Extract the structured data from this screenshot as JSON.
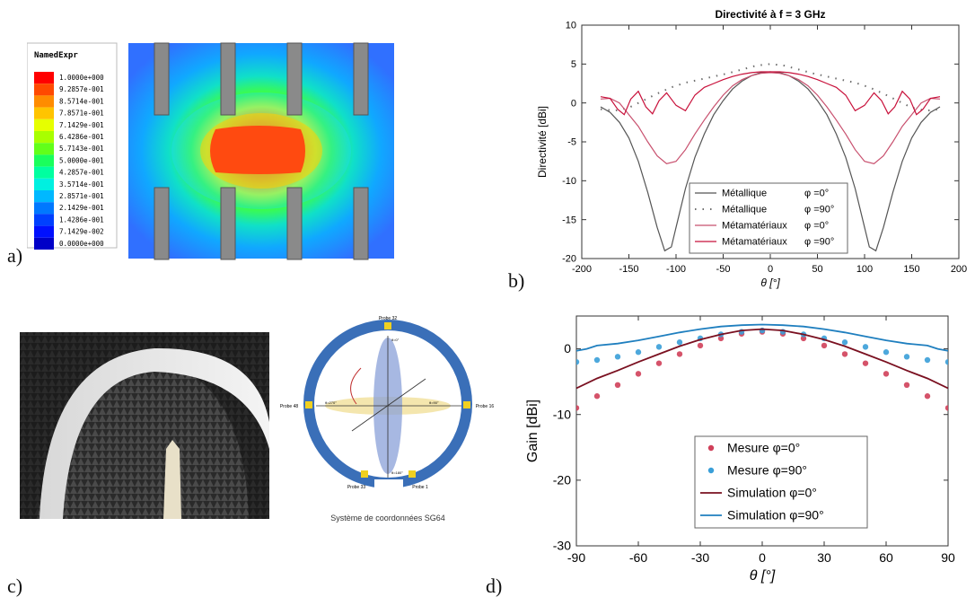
{
  "panel_labels": {
    "a": "a)",
    "b": "b)",
    "c": "c)",
    "d": "d)"
  },
  "panel_a": {
    "legend_title": "NamedExpr",
    "legend_ticks": [
      "1.0000e+000",
      "9.2857e-001",
      "8.5714e-001",
      "7.8571e-001",
      "7.1429e-001",
      "6.4286e-001",
      "5.7143e-001",
      "5.0000e-001",
      "4.2857e-001",
      "3.5714e-001",
      "2.8571e-001",
      "2.1429e-001",
      "1.4286e-001",
      "7.1429e-002",
      "0.0000e+000"
    ],
    "legend_colors": [
      "#ff0000",
      "#ff4a00",
      "#ff8c00",
      "#ffc400",
      "#e6ff00",
      "#a8ff00",
      "#62ff1a",
      "#1aff5c",
      "#00ffa0",
      "#00f0e0",
      "#00b8ff",
      "#0078ff",
      "#0040ff",
      "#0010ff",
      "#0000c8"
    ]
  },
  "panel_c": {
    "caption": "Système de coordonnées SG64",
    "probes": [
      "Probe 32",
      "Probe 48",
      "Probe 16",
      "Probe 33",
      "Probe 1"
    ],
    "axis_labels": [
      "θ=0°",
      "θ=180°",
      "θ=90°",
      "θ=270°"
    ]
  },
  "chart_data": [
    {
      "type": "line",
      "title": "Directivité à f = 3 GHz",
      "xlabel": "θ [°]",
      "ylabel": "Directivité [dBi]",
      "xlim": [
        -200,
        200
      ],
      "ylim": [
        -20,
        10
      ],
      "xticks": [
        -200,
        -150,
        -100,
        -50,
        0,
        50,
        100,
        150,
        200
      ],
      "yticks": [
        10,
        5,
        0,
        -5,
        -10,
        -15,
        -20
      ],
      "legend_position": "bottom-center",
      "series": [
        {
          "name": "Métallique",
          "phi": "φ =0°",
          "style": "solid",
          "color": "#555555",
          "x": [
            -180,
            -170,
            -160,
            -150,
            -140,
            -130,
            -120,
            -112,
            -105,
            -100,
            -90,
            -80,
            -70,
            -60,
            -50,
            -40,
            -30,
            -20,
            -10,
            0,
            10,
            20,
            30,
            40,
            50,
            60,
            70,
            80,
            90,
            100,
            105,
            112,
            120,
            130,
            140,
            150,
            160,
            170,
            180
          ],
          "y": [
            -0.5,
            -1.2,
            -2.5,
            -4.5,
            -7.5,
            -11.5,
            -16,
            -19,
            -18.5,
            -16,
            -11,
            -7,
            -4,
            -1.5,
            0.3,
            1.8,
            2.8,
            3.5,
            3.9,
            4,
            3.9,
            3.5,
            2.8,
            1.8,
            0.3,
            -1.5,
            -4,
            -7,
            -11,
            -16,
            -18.5,
            -19,
            -16,
            -11.5,
            -7.5,
            -4.5,
            -2.5,
            -1.2,
            -0.5
          ]
        },
        {
          "name": "Métallique",
          "phi": "φ =90°",
          "style": "dotted",
          "color": "#6e6e6e",
          "x": [
            -180,
            -165,
            -150,
            -135,
            -120,
            -105,
            -90,
            -75,
            -60,
            -45,
            -30,
            -15,
            0,
            15,
            30,
            45,
            60,
            75,
            90,
            105,
            120,
            135,
            150,
            165,
            180
          ],
          "y": [
            -0.8,
            -1,
            -0.6,
            0.3,
            1.2,
            2,
            2.6,
            3,
            3.4,
            3.8,
            4.3,
            4.8,
            5,
            4.8,
            4.3,
            3.8,
            3.4,
            3,
            2.6,
            2,
            1.2,
            0.3,
            -0.6,
            -1,
            -0.8
          ]
        },
        {
          "name": "Métamatériaux",
          "phi": "φ =0°",
          "style": "solid",
          "color": "#c8506e",
          "x": [
            -180,
            -170,
            -160,
            -150,
            -140,
            -130,
            -120,
            -110,
            -100,
            -90,
            -80,
            -70,
            -60,
            -50,
            -40,
            -30,
            -20,
            -10,
            0,
            10,
            20,
            30,
            40,
            50,
            60,
            70,
            80,
            90,
            100,
            110,
            120,
            130,
            140,
            150,
            160,
            170,
            180
          ],
          "y": [
            0.5,
            0.6,
            0,
            -1.5,
            -3,
            -5,
            -6.8,
            -7.8,
            -7.5,
            -6,
            -4,
            -2.2,
            -0.5,
            1,
            2.2,
            3,
            3.5,
            3.8,
            3.9,
            3.8,
            3.5,
            3,
            2.2,
            1,
            -0.5,
            -2.2,
            -4,
            -6,
            -7.5,
            -7.8,
            -6.8,
            -5,
            -3,
            -1.5,
            0,
            0.6,
            0.5
          ]
        },
        {
          "name": "Métamatériaux",
          "phi": "φ =90°",
          "style": "solid",
          "color": "#c8103a",
          "x": [
            -180,
            -170,
            -162,
            -155,
            -148,
            -140,
            -132,
            -125,
            -118,
            -110,
            -100,
            -90,
            -80,
            -70,
            -60,
            -50,
            -40,
            -30,
            -20,
            -10,
            0,
            10,
            20,
            30,
            40,
            50,
            60,
            70,
            80,
            90,
            100,
            110,
            118,
            125,
            132,
            140,
            148,
            155,
            162,
            170,
            180
          ],
          "y": [
            0.8,
            0.6,
            -0.8,
            -1.5,
            0.5,
            1.5,
            -0.5,
            -1.4,
            0.3,
            1.3,
            -0.3,
            -1,
            1,
            2,
            2.5,
            3,
            3.4,
            3.7,
            3.9,
            4,
            4,
            4,
            3.9,
            3.7,
            3.4,
            3,
            2.5,
            2,
            1,
            -1,
            -0.3,
            1.3,
            0.3,
            -1.4,
            -0.5,
            1.5,
            0.5,
            -1.5,
            -0.8,
            0.6,
            0.8
          ]
        }
      ]
    },
    {
      "type": "line",
      "title": "",
      "xlabel": "θ [°]",
      "ylabel": "Gain [dBi]",
      "xlim": [
        -90,
        90
      ],
      "ylim": [
        -30,
        5
      ],
      "xticks": [
        -90,
        -60,
        -30,
        0,
        30,
        60,
        90
      ],
      "yticks": [
        0,
        -10,
        -20,
        -30
      ],
      "legend_position": "bottom-center",
      "series": [
        {
          "name": "Mesure φ=0°",
          "style": "markers",
          "color": "#d0405a",
          "x": [
            -90,
            -80,
            -70,
            -60,
            -50,
            -40,
            -30,
            -20,
            -10,
            0,
            10,
            20,
            30,
            40,
            50,
            60,
            70,
            80,
            90
          ],
          "y": [
            -9,
            -7.2,
            -5.5,
            -3.8,
            -2.2,
            -0.8,
            0.5,
            1.6,
            2.3,
            2.6,
            2.3,
            1.6,
            0.5,
            -0.8,
            -2.2,
            -3.8,
            -5.5,
            -7.2,
            -9
          ]
        },
        {
          "name": "Mesure φ=90°",
          "style": "markers",
          "color": "#3a9fd8",
          "x": [
            -90,
            -80,
            -70,
            -60,
            -50,
            -40,
            -30,
            -20,
            -10,
            0,
            10,
            20,
            30,
            40,
            50,
            60,
            70,
            80,
            90
          ],
          "y": [
            -2,
            -1.7,
            -1.2,
            -0.5,
            0.3,
            1,
            1.6,
            2.2,
            2.6,
            2.8,
            2.6,
            2.2,
            1.6,
            1,
            0.3,
            -0.5,
            -1.2,
            -1.7,
            -2
          ]
        },
        {
          "name": "Simulation φ=0°",
          "style": "solid",
          "color": "#7a1020",
          "x": [
            -90,
            -80,
            -70,
            -60,
            -50,
            -40,
            -30,
            -20,
            -10,
            0,
            10,
            20,
            30,
            40,
            50,
            60,
            70,
            80,
            90
          ],
          "y": [
            -6,
            -4.5,
            -3.3,
            -2,
            -0.8,
            0.4,
            1.4,
            2.2,
            2.8,
            3,
            2.8,
            2.2,
            1.4,
            0.4,
            -0.8,
            -2,
            -3.3,
            -4.5,
            -6
          ]
        },
        {
          "name": "Simulation φ=90°",
          "style": "solid",
          "color": "#1f7fbf",
          "x": [
            -90,
            -85,
            -80,
            -70,
            -60,
            -50,
            -40,
            -30,
            -20,
            -10,
            0,
            10,
            20,
            30,
            40,
            50,
            60,
            70,
            80,
            85,
            90
          ],
          "y": [
            -0.3,
            0,
            0.5,
            0.8,
            1.3,
            1.9,
            2.5,
            3,
            3.4,
            3.6,
            3.7,
            3.6,
            3.4,
            3,
            2.5,
            1.9,
            1.3,
            0.8,
            0.5,
            0,
            -0.3
          ]
        }
      ]
    }
  ]
}
